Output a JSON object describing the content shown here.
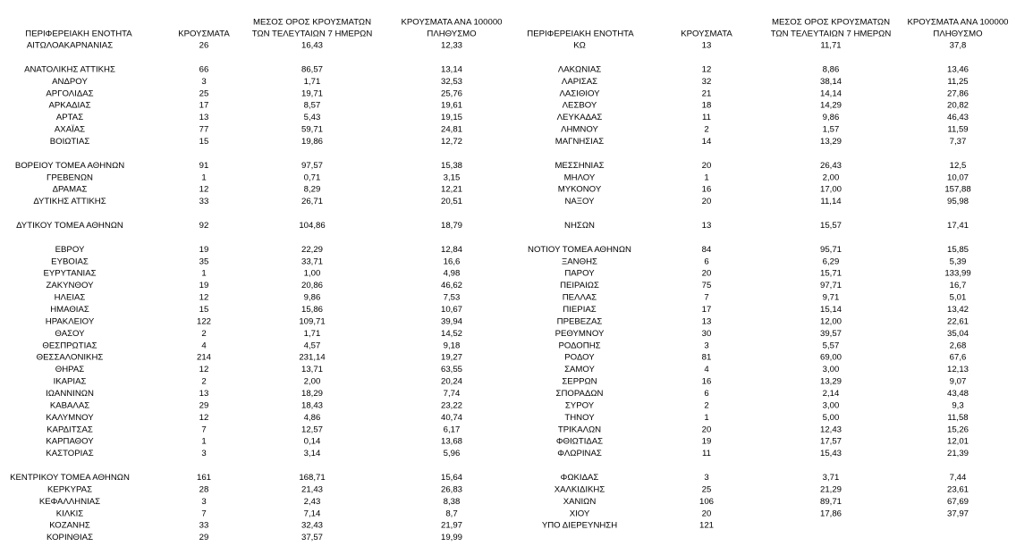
{
  "tables": [
    {
      "headers": [
        [
          "ΠΕΡΙΦΕΡΕΙΑΚΗ ΕΝΟΤΗΤΑ"
        ],
        [
          "ΚΡΟΥΣΜΑΤΑ"
        ],
        [
          "ΜΕΣΟΣ ΟΡΟΣ ΚΡΟΥΣΜΑΤΩΝ",
          "ΤΩΝ ΤΕΛΕΥΤΑΙΩΝ 7 ΗΜΕΡΩΝ"
        ],
        [
          "ΚΡΟΥΣΜΑΤΑ ΑΝΑ 100000",
          "ΠΛΗΘΥΣΜΟ"
        ]
      ],
      "groups": [
        [
          [
            "ΑΙΤΩΛΟΑΚΑΡΝΑΝΙΑΣ",
            "26",
            "16,43",
            "12,33"
          ]
        ],
        [
          [
            "ΑΝΑΤΟΛΙΚΗΣ ΑΤΤΙΚΗΣ",
            "66",
            "86,57",
            "13,14"
          ],
          [
            "ΑΝΔΡΟΥ",
            "3",
            "1,71",
            "32,53"
          ],
          [
            "ΑΡΓΟΛΙΔΑΣ",
            "25",
            "19,71",
            "25,76"
          ],
          [
            "ΑΡΚΑΔΙΑΣ",
            "17",
            "8,57",
            "19,61"
          ],
          [
            "ΑΡΤΑΣ",
            "13",
            "5,43",
            "19,15"
          ],
          [
            "ΑΧΑΪΑΣ",
            "77",
            "59,71",
            "24,81"
          ],
          [
            "ΒΟΙΩΤΙΑΣ",
            "15",
            "19,86",
            "12,72"
          ]
        ],
        [
          [
            "ΒΟΡΕΙΟΥ ΤΟΜΕΑ ΑΘΗΝΩΝ",
            "91",
            "97,57",
            "15,38"
          ],
          [
            "ΓΡΕΒΕΝΩΝ",
            "1",
            "0,71",
            "3,15"
          ],
          [
            "ΔΡΑΜΑΣ",
            "12",
            "8,29",
            "12,21"
          ],
          [
            "ΔΥΤΙΚΗΣ ΑΤΤΙΚΗΣ",
            "33",
            "26,71",
            "20,51"
          ]
        ],
        [
          [
            "ΔΥΤΙΚΟΥ ΤΟΜΕΑ ΑΘΗΝΩΝ",
            "92",
            "104,86",
            "18,79"
          ]
        ],
        [
          [
            "ΕΒΡΟΥ",
            "19",
            "22,29",
            "12,84"
          ],
          [
            "ΕΥΒΟΙΑΣ",
            "35",
            "33,71",
            "16,6"
          ],
          [
            "ΕΥΡΥΤΑΝΙΑΣ",
            "1",
            "1,00",
            "4,98"
          ],
          [
            "ΖΑΚΥΝΘΟΥ",
            "19",
            "20,86",
            "46,62"
          ],
          [
            "ΗΛΕΙΑΣ",
            "12",
            "9,86",
            "7,53"
          ],
          [
            "ΗΜΑΘΙΑΣ",
            "15",
            "15,86",
            "10,67"
          ],
          [
            "ΗΡΑΚΛΕΙΟΥ",
            "122",
            "109,71",
            "39,94"
          ],
          [
            "ΘΑΣΟΥ",
            "2",
            "1,71",
            "14,52"
          ],
          [
            "ΘΕΣΠΡΩΤΙΑΣ",
            "4",
            "4,57",
            "9,18"
          ],
          [
            "ΘΕΣΣΑΛΟΝΙΚΗΣ",
            "214",
            "231,14",
            "19,27"
          ],
          [
            "ΘΗΡΑΣ",
            "12",
            "13,71",
            "63,55"
          ],
          [
            "ΙΚΑΡΙΑΣ",
            "2",
            "2,00",
            "20,24"
          ],
          [
            "ΙΩΑΝΝΙΝΩΝ",
            "13",
            "18,29",
            "7,74"
          ],
          [
            "ΚΑΒΑΛΑΣ",
            "29",
            "18,43",
            "23,22"
          ],
          [
            "ΚΑΛΥΜΝΟΥ",
            "12",
            "4,86",
            "40,74"
          ],
          [
            "ΚΑΡΔΙΤΣΑΣ",
            "7",
            "12,57",
            "6,17"
          ],
          [
            "ΚΑΡΠΑΘΟΥ",
            "1",
            "0,14",
            "13,68"
          ],
          [
            "ΚΑΣΤΟΡΙΑΣ",
            "3",
            "3,14",
            "5,96"
          ]
        ],
        [
          [
            "ΚΕΝΤΡΙΚΟΥ ΤΟΜΕΑ ΑΘΗΝΩΝ",
            "161",
            "168,71",
            "15,64"
          ],
          [
            "ΚΕΡΚΥΡΑΣ",
            "28",
            "21,43",
            "26,83"
          ],
          [
            "ΚΕΦΑΛΛΗΝΙΑΣ",
            "3",
            "2,43",
            "8,38"
          ],
          [
            "ΚΙΛΚΙΣ",
            "7",
            "7,14",
            "8,7"
          ],
          [
            "ΚΟΖΑΝΗΣ",
            "33",
            "32,43",
            "21,97"
          ],
          [
            "ΚΟΡΙΝΘΙΑΣ",
            "29",
            "37,57",
            "19,99"
          ]
        ]
      ]
    },
    {
      "headers": [
        [
          "ΠΕΡΙΦΕΡΕΙΑΚΗ ΕΝΟΤΗΤΑ"
        ],
        [
          "ΚΡΟΥΣΜΑΤΑ"
        ],
        [
          "ΜΕΣΟΣ ΟΡΟΣ ΚΡΟΥΣΜΑΤΩΝ",
          "ΤΩΝ ΤΕΛΕΥΤΑΙΩΝ 7 ΗΜΕΡΩΝ"
        ],
        [
          "ΚΡΟΥΣΜΑΤΑ ΑΝΑ 100000",
          "ΠΛΗΘΥΣΜΟ"
        ]
      ],
      "groups": [
        [
          [
            "ΚΩ",
            "13",
            "11,71",
            "37,8"
          ]
        ],
        [
          [
            "ΛΑΚΩΝΙΑΣ",
            "12",
            "8,86",
            "13,46"
          ],
          [
            "ΛΑΡΙΣΑΣ",
            "32",
            "38,14",
            "11,25"
          ],
          [
            "ΛΑΣΙΘΙΟΥ",
            "21",
            "14,14",
            "27,86"
          ],
          [
            "ΛΕΣΒΟΥ",
            "18",
            "14,29",
            "20,82"
          ],
          [
            "ΛΕΥΚΑΔΑΣ",
            "11",
            "9,86",
            "46,43"
          ],
          [
            "ΛΗΜΝΟΥ",
            "2",
            "1,57",
            "11,59"
          ],
          [
            "ΜΑΓΝΗΣΙΑΣ",
            "14",
            "13,29",
            "7,37"
          ]
        ],
        [
          [
            "ΜΕΣΣΗΝΙΑΣ",
            "20",
            "26,43",
            "12,5"
          ],
          [
            "ΜΗΛΟΥ",
            "1",
            "2,00",
            "10,07"
          ],
          [
            "ΜΥΚΟΝΟΥ",
            "16",
            "17,00",
            "157,88"
          ],
          [
            "ΝΑΞΟΥ",
            "20",
            "11,14",
            "95,98"
          ]
        ],
        [
          [
            "ΝΗΣΩΝ",
            "13",
            "15,57",
            "17,41"
          ]
        ],
        [
          [
            "ΝΟΤΙΟΥ ΤΟΜΕΑ ΑΘΗΝΩΝ",
            "84",
            "95,71",
            "15,85"
          ],
          [
            "ΞΑΝΘΗΣ",
            "6",
            "6,29",
            "5,39"
          ],
          [
            "ΠΑΡΟΥ",
            "20",
            "15,71",
            "133,99"
          ],
          [
            "ΠΕΙΡΑΙΩΣ",
            "75",
            "97,71",
            "16,7"
          ],
          [
            "ΠΕΛΛΑΣ",
            "7",
            "9,71",
            "5,01"
          ],
          [
            "ΠΙΕΡΙΑΣ",
            "17",
            "15,14",
            "13,42"
          ],
          [
            "ΠΡΕΒΕΖΑΣ",
            "13",
            "12,00",
            "22,61"
          ],
          [
            "ΡΕΘΥΜΝΟΥ",
            "30",
            "39,57",
            "35,04"
          ],
          [
            "ΡΟΔΟΠΗΣ",
            "3",
            "5,57",
            "2,68"
          ],
          [
            "ΡΟΔΟΥ",
            "81",
            "69,00",
            "67,6"
          ],
          [
            "ΣΑΜΟΥ",
            "4",
            "3,00",
            "12,13"
          ],
          [
            "ΣΕΡΡΩΝ",
            "16",
            "13,29",
            "9,07"
          ],
          [
            "ΣΠΟΡΑΔΩΝ",
            "6",
            "2,14",
            "43,48"
          ],
          [
            "ΣΥΡΟΥ",
            "2",
            "3,00",
            "9,3"
          ],
          [
            "ΤΗΝΟΥ",
            "1",
            "5,00",
            "11,58"
          ],
          [
            "ΤΡΙΚΑΛΩΝ",
            "20",
            "12,43",
            "15,26"
          ],
          [
            "ΦΘΙΩΤΙΔΑΣ",
            "19",
            "17,57",
            "12,01"
          ],
          [
            "ΦΛΩΡΙΝΑΣ",
            "11",
            "15,43",
            "21,39"
          ]
        ],
        [
          [
            "ΦΩΚΙΔΑΣ",
            "3",
            "3,71",
            "7,44"
          ],
          [
            "ΧΑΛΚΙΔΙΚΗΣ",
            "25",
            "21,29",
            "23,61"
          ],
          [
            "ΧΑΝΙΩΝ",
            "106",
            "89,71",
            "67,69"
          ],
          [
            "ΧΙΟΥ",
            "20",
            "17,86",
            "37,97"
          ],
          [
            "ΥΠΟ ΔΙΕΡΕΥΝΗΣΗ",
            "121"
          ]
        ]
      ]
    }
  ]
}
